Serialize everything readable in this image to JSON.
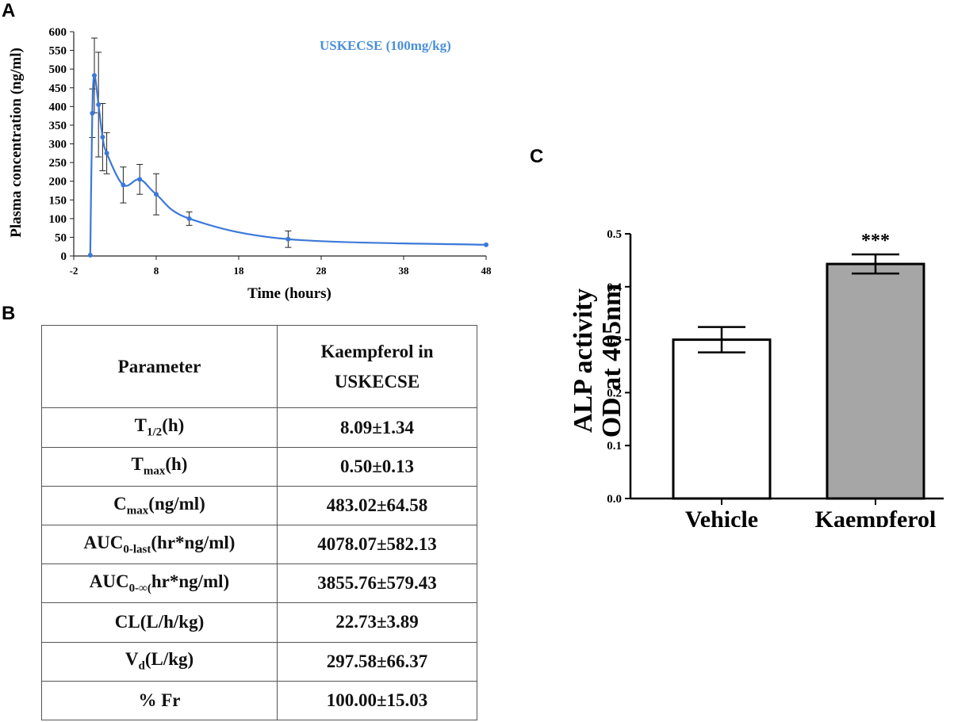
{
  "panels": {
    "a": "A",
    "b": "B",
    "c": "C"
  },
  "colors": {
    "line": "#3c78d8",
    "legend": "#4a8fd9",
    "bar_kaempferol": "#a6a6a6",
    "bar_vehicle": "#ffffff"
  },
  "chart_data": [
    {
      "id": "A",
      "type": "line",
      "title": "",
      "legend": "USKECSE (100mg/kg)",
      "xlabel": "Time (hours)",
      "ylabel": "Plasma concentration (ng/ml)",
      "xlim": [
        -2,
        48
      ],
      "ylim": [
        0,
        600
      ],
      "xticks": [
        -2,
        8,
        18,
        28,
        38,
        48
      ],
      "yticks": [
        0,
        50,
        100,
        150,
        200,
        250,
        300,
        350,
        400,
        450,
        500,
        550,
        600
      ],
      "x": [
        0,
        0.25,
        0.5,
        1,
        1.5,
        2,
        4,
        6,
        8,
        12,
        24,
        48
      ],
      "y": [
        2,
        382,
        483,
        405,
        318,
        275,
        190,
        205,
        165,
        100,
        45,
        30
      ],
      "error": [
        0,
        65,
        100,
        140,
        90,
        55,
        48,
        40,
        55,
        18,
        22,
        0
      ]
    },
    {
      "id": "C",
      "type": "bar",
      "categories": [
        "Vehicle",
        "Kaempferol"
      ],
      "values": [
        0.3,
        0.443
      ],
      "error": [
        0.024,
        0.018
      ],
      "ylabel_line1": "ALP activity",
      "ylabel_line2": "OD at 405nm",
      "ylim": [
        0,
        0.5
      ],
      "yticks": [
        "0.0",
        "0.1",
        "0.2",
        "0.3",
        "0.4",
        "0.5"
      ],
      "annotation": "***"
    }
  ],
  "table": {
    "header": {
      "col1": "Parameter",
      "col2_line1": "Kaempferol in",
      "col2_line2": "USKECSE"
    },
    "rows": [
      {
        "base": "T",
        "sub": "1/2",
        "rest": "(h)",
        "value": "8.09±1.34"
      },
      {
        "base": "T",
        "sub": "max",
        "rest": "(h)",
        "value": "0.50±0.13"
      },
      {
        "base": "C",
        "sub": "max",
        "rest": "(ng/ml)",
        "value": "483.02±64.58"
      },
      {
        "base": "AUC",
        "sub": "0-last",
        "rest": "(hr*ng/ml)",
        "value": "4078.07±582.13"
      },
      {
        "base": "AUC",
        "sub": "0-∞(",
        "rest": "hr*ng/ml)",
        "value": "3855.76±579.43"
      },
      {
        "base": "CL(L/h/kg)",
        "sub": "",
        "rest": "",
        "value": "22.73±3.89"
      },
      {
        "base": "V",
        "sub": "d",
        "rest": "(L/kg)",
        "value": "297.58±66.37"
      },
      {
        "base": "% Fr",
        "sub": "",
        "rest": "",
        "value": "100.00±15.03"
      }
    ]
  }
}
